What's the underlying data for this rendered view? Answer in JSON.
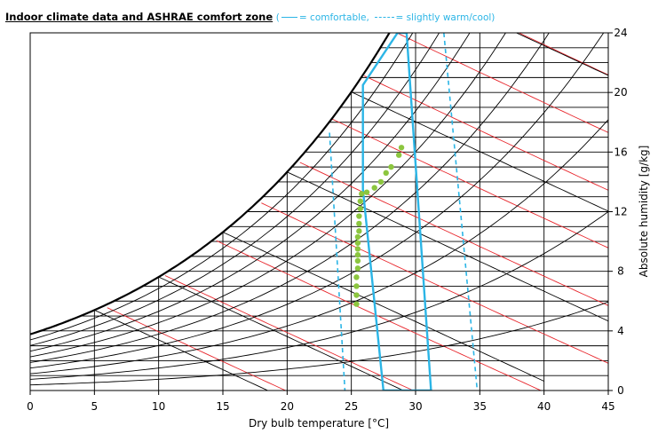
{
  "chart_data": {
    "type": "scatter",
    "title": "Indoor climate data and ASHRAE comfort zone",
    "legend": {
      "open": "(",
      "solid_label": "= comfortable,",
      "dashed_label": "= slightly warm/cool)"
    },
    "xlabel": "Dry bulb temperature [°C]",
    "ylabel": "Absolute humidity [g/kg]",
    "xlim": [
      0,
      45
    ],
    "ylim": [
      0,
      24
    ],
    "x_ticks": [
      0,
      5,
      10,
      15,
      20,
      25,
      30,
      35,
      40,
      45
    ],
    "y_ticks": [
      0,
      4,
      8,
      12,
      16,
      20,
      24
    ],
    "grid": true,
    "colors": {
      "data_points": "#8cc63f",
      "comfort_zone": "#2bb5e6",
      "enthalpy_lines": "#e8252b",
      "rh_lines": "#000000"
    },
    "series": [
      {
        "values": [
          [
            25.4,
            5.8
          ],
          [
            25.4,
            6.4
          ],
          [
            25.4,
            7.0
          ],
          [
            25.4,
            7.6
          ],
          [
            25.5,
            8.2
          ],
          [
            25.5,
            8.7
          ],
          [
            25.5,
            9.1
          ],
          [
            25.5,
            9.5
          ],
          [
            25.5,
            9.9
          ],
          [
            25.5,
            10.3
          ],
          [
            25.6,
            10.7
          ],
          [
            25.6,
            11.2
          ],
          [
            25.6,
            11.7
          ],
          [
            25.7,
            12.2
          ],
          [
            25.7,
            12.7
          ],
          [
            25.8,
            13.2
          ],
          [
            26.2,
            13.3
          ],
          [
            26.8,
            13.6
          ],
          [
            27.3,
            14.0
          ],
          [
            27.7,
            14.6
          ],
          [
            28.1,
            15.0
          ],
          [
            28.7,
            15.8
          ],
          [
            28.9,
            16.3
          ]
        ]
      }
    ],
    "comfort_zone_solid": [
      [
        27.5,
        0
      ],
      [
        31.2,
        0
      ],
      [
        29.3,
        24
      ],
      [
        28.6,
        24
      ],
      [
        25.9,
        20.5
      ],
      [
        25.9,
        13.5
      ]
    ],
    "comfort_zone_dashed": [
      [
        [
          23.3,
          17.3
        ],
        [
          24.5,
          0
        ]
      ],
      [
        [
          32.2,
          24
        ],
        [
          34.8,
          0
        ]
      ]
    ]
  }
}
